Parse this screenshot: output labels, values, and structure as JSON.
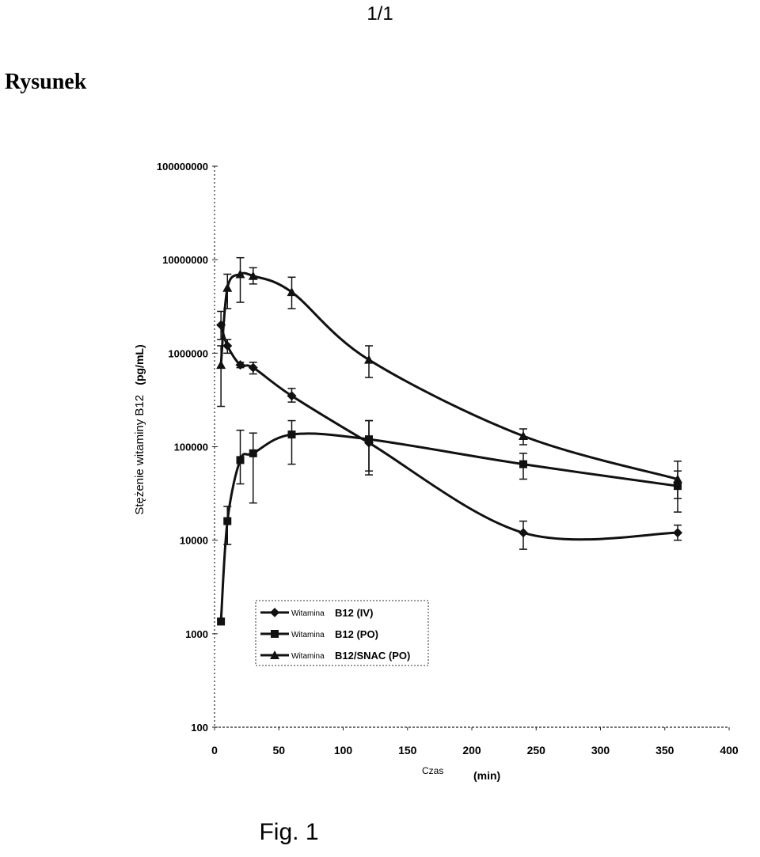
{
  "page": {
    "page_number": "1/1",
    "heading": "Rysunek",
    "caption": "Fig. 1"
  },
  "chart_data": {
    "type": "line",
    "title": "",
    "xlabel_word": "Czas",
    "xlabel_unit": "(min)",
    "ylabel_words": "Stężenie witaminy B12",
    "ylabel_unit": "(pg/mL)",
    "xlim": [
      0,
      400
    ],
    "ylim": [
      100,
      100000000
    ],
    "yscale": "log",
    "grid": false,
    "legend_position": "lower-left",
    "x_ticks": [
      0,
      50,
      100,
      150,
      200,
      250,
      300,
      350,
      400
    ],
    "x_tick_labels": [
      "0",
      "50",
      "100",
      "150",
      "200",
      "250",
      "300",
      "350",
      "400"
    ],
    "y_ticks": [
      100,
      1000,
      10000,
      100000,
      1000000,
      10000000,
      100000000
    ],
    "y_tick_labels": [
      "100",
      "1000",
      "10000",
      "100000",
      "1000000",
      "10000000",
      "100000000"
    ],
    "series": [
      {
        "name_prefix": "Witamina",
        "name_suffix": "B12 (IV)",
        "marker": "diamond",
        "points": [
          {
            "x": 5,
            "y": 2000000,
            "lo": 1400000,
            "hi": 2800000
          },
          {
            "x": 10,
            "y": 1200000,
            "lo": 1000000,
            "hi": 1400000
          },
          {
            "x": 20,
            "y": 750000,
            "lo": 700000,
            "hi": 800000
          },
          {
            "x": 30,
            "y": 700000,
            "lo": 600000,
            "hi": 800000
          },
          {
            "x": 60,
            "y": 350000,
            "lo": 300000,
            "hi": 420000
          },
          {
            "x": 120,
            "y": 110000,
            "lo": 50000,
            "hi": 190000
          },
          {
            "x": 240,
            "y": 12000,
            "lo": 8000,
            "hi": 16000
          },
          {
            "x": 360,
            "y": 12000,
            "lo": 10000,
            "hi": 14500
          }
        ]
      },
      {
        "name_prefix": "Witamina",
        "name_suffix": "B12 (PO)",
        "marker": "square",
        "points": [
          {
            "x": 5,
            "y": 1350,
            "lo": 1350,
            "hi": 1350
          },
          {
            "x": 10,
            "y": 16000,
            "lo": 9000,
            "hi": 23000
          },
          {
            "x": 20,
            "y": 72000,
            "lo": 40000,
            "hi": 150000
          },
          {
            "x": 30,
            "y": 85000,
            "lo": 25000,
            "hi": 140000
          },
          {
            "x": 60,
            "y": 135000,
            "lo": 65000,
            "hi": 190000
          },
          {
            "x": 120,
            "y": 120000,
            "lo": 55000,
            "hi": 190000
          },
          {
            "x": 240,
            "y": 65000,
            "lo": 45000,
            "hi": 85000
          },
          {
            "x": 360,
            "y": 38000,
            "lo": 20000,
            "hi": 55000
          }
        ]
      },
      {
        "name_prefix": "Witamina",
        "name_suffix": "B12/SNAC (PO)",
        "marker": "triangle",
        "points": [
          {
            "x": 5,
            "y": 750000,
            "lo": 270000,
            "hi": 1200000
          },
          {
            "x": 10,
            "y": 5000000,
            "lo": 3000000,
            "hi": 7000000
          },
          {
            "x": 20,
            "y": 7000000,
            "lo": 3500000,
            "hi": 10500000
          },
          {
            "x": 30,
            "y": 6700000,
            "lo": 5500000,
            "hi": 8200000
          },
          {
            "x": 60,
            "y": 4500000,
            "lo": 3000000,
            "hi": 6500000
          },
          {
            "x": 120,
            "y": 850000,
            "lo": 550000,
            "hi": 1200000
          },
          {
            "x": 240,
            "y": 130000,
            "lo": 105000,
            "hi": 155000
          },
          {
            "x": 360,
            "y": 45000,
            "lo": 28000,
            "hi": 70000
          }
        ]
      }
    ]
  }
}
